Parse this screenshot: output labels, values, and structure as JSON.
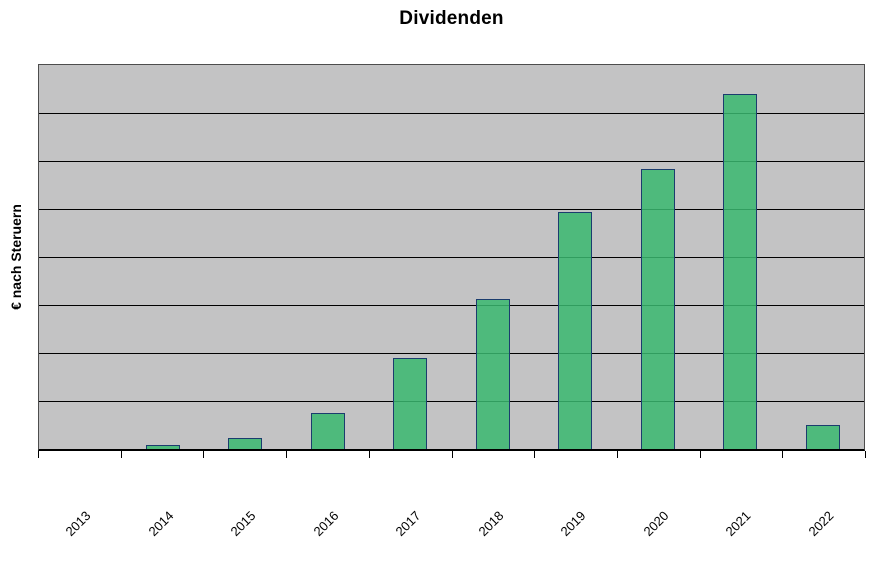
{
  "chart": {
    "title": "Dividenden",
    "y_axis_label": "€ nach Steruern"
  },
  "chart_data": {
    "type": "bar",
    "title": "Dividenden",
    "xlabel": "",
    "ylabel": "€ nach Steruern",
    "categories": [
      "2013",
      "2014",
      "2015",
      "2016",
      "2017",
      "2018",
      "2019",
      "2020",
      "2021",
      "2022"
    ],
    "values": [
      0,
      0.08,
      0.23,
      0.76,
      1.9,
      3.12,
      4.94,
      5.83,
      7.39,
      0.49
    ],
    "value_unit": "gridline intervals (no numeric y-axis tick labels are shown in the image)",
    "ylim": [
      0,
      8
    ],
    "y_gridline_intervals": 8,
    "grid": true,
    "legend": "none",
    "x_tick_label_rotation_deg": -45,
    "colors": {
      "bar_fill": "#39b970",
      "bar_fill_alpha": 0.85,
      "bar_border": "#1b3c6e",
      "plot_background": "#c3c3c4",
      "gridline": "#000000",
      "plot_border": "#4d4d4d",
      "axis_line": "#000000",
      "page_background": "#ffffff",
      "text": "#000000"
    }
  }
}
